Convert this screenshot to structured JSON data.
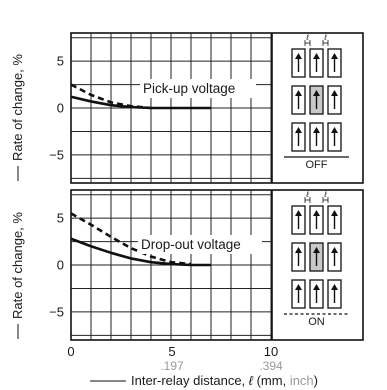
{
  "chart_data": [
    {
      "type": "line",
      "xlim": [
        0,
        15
      ],
      "ylim": [
        -8,
        8
      ],
      "yticks": [
        "5",
        "0",
        "−5"
      ],
      "grid": true,
      "ylabel": "Rate of change, %",
      "annotation": "Pick-up voltage",
      "series": [
        {
          "style": "dashed",
          "x": [
            0,
            1,
            2,
            3,
            4
          ],
          "y": [
            2.5,
            1.4,
            0.6,
            0.2,
            0
          ]
        },
        {
          "style": "solid",
          "x": [
            0,
            1,
            2,
            3,
            4,
            5,
            6,
            7
          ],
          "y": [
            1.2,
            0.7,
            0.3,
            0.1,
            0,
            0,
            0,
            0
          ]
        }
      ],
      "inset": {
        "state": "OFF",
        "gap_label": "ℓ",
        "rows": 3,
        "cols": 3,
        "highlight": "center",
        "bottom_line": "solid"
      }
    },
    {
      "type": "line",
      "xlim": [
        0,
        15
      ],
      "ylim": [
        -8,
        8
      ],
      "yticks": [
        "5",
        "0",
        "−5"
      ],
      "grid": true,
      "ylabel": "Rate of change, %",
      "annotation": "Drop-out voltage",
      "series": [
        {
          "style": "dashed",
          "x": [
            0,
            1,
            2,
            3,
            4,
            5,
            6
          ],
          "y": [
            5.5,
            4.3,
            3.0,
            1.8,
            0.9,
            0.3,
            0.1
          ]
        },
        {
          "style": "solid",
          "x": [
            0,
            1,
            2,
            3,
            4,
            5,
            6,
            7
          ],
          "y": [
            2.8,
            2.0,
            1.3,
            0.7,
            0.3,
            0.1,
            0,
            0
          ]
        }
      ],
      "inset": {
        "state": "ON",
        "gap_label": "ℓ",
        "rows": 3,
        "cols": 3,
        "highlight": "center",
        "bottom_line": "dashed"
      }
    }
  ],
  "x_axis": {
    "ticks_mm": [
      "0",
      "5",
      "10"
    ],
    "ticks_inch": [
      ".197",
      ".394"
    ],
    "label_prefix": "Inter-relay distance, ",
    "label_symbol": "ℓ",
    "label_mm": " (mm, ",
    "label_inch": "inch",
    "label_suffix": ")"
  },
  "colors": {
    "line": "#111111",
    "grid": "#222222",
    "inch": "#9a9a9a",
    "highlight": "#c8c8c8"
  }
}
